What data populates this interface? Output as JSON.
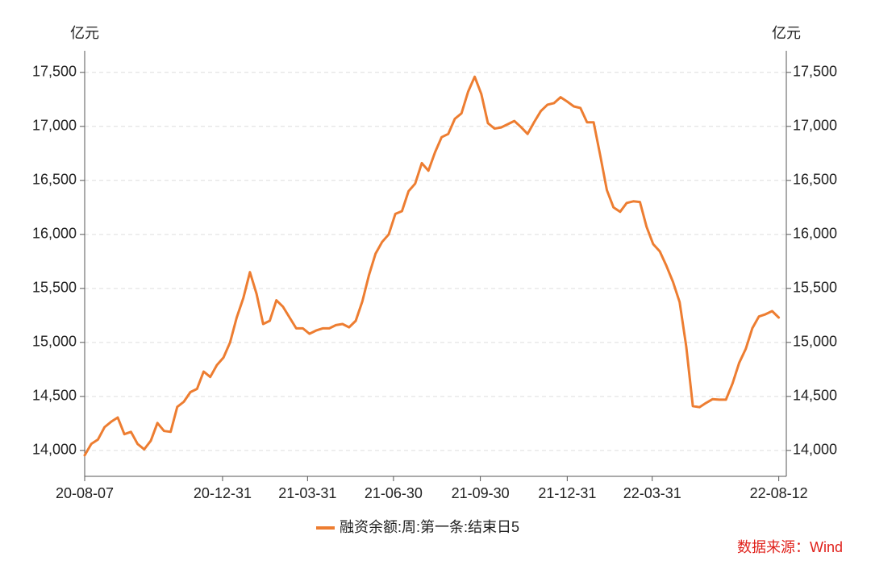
{
  "chart_data": {
    "type": "line",
    "y_label": "亿元",
    "y2_label": "亿元",
    "source": "数据来源：Wind",
    "x": [
      "20-08-07",
      "20-08-14",
      "20-08-21",
      "20-08-28",
      "20-09-04",
      "20-09-11",
      "20-09-18",
      "20-09-25",
      "20-10-02",
      "20-10-09",
      "20-10-16",
      "20-10-23",
      "20-10-30",
      "20-11-06",
      "20-11-13",
      "20-11-20",
      "20-11-27",
      "20-12-04",
      "20-12-11",
      "20-12-18",
      "20-12-25",
      "21-01-01",
      "21-01-08",
      "21-01-15",
      "21-01-22",
      "21-01-29",
      "21-02-05",
      "21-02-12",
      "21-02-19",
      "21-02-26",
      "21-03-05",
      "21-03-12",
      "21-03-19",
      "21-03-26",
      "21-04-02",
      "21-04-09",
      "21-04-16",
      "21-04-23",
      "21-04-30",
      "21-05-07",
      "21-05-14",
      "21-05-21",
      "21-05-28",
      "21-06-04",
      "21-06-11",
      "21-06-18",
      "21-06-25",
      "21-07-02",
      "21-07-09",
      "21-07-16",
      "21-07-23",
      "21-07-30",
      "21-08-06",
      "21-08-13",
      "21-08-20",
      "21-08-27",
      "21-09-03",
      "21-09-10",
      "21-09-17",
      "21-09-24",
      "21-10-01",
      "21-10-08",
      "21-10-15",
      "21-10-22",
      "21-10-29",
      "21-11-05",
      "21-11-12",
      "21-11-19",
      "21-11-26",
      "21-12-03",
      "21-12-10",
      "21-12-17",
      "21-12-24",
      "21-12-31",
      "22-01-07",
      "22-01-14",
      "22-01-21",
      "22-01-28",
      "22-02-04",
      "22-02-11",
      "22-02-18",
      "22-02-25",
      "22-03-04",
      "22-03-11",
      "22-03-18",
      "22-03-25",
      "22-04-01",
      "22-04-08",
      "22-04-15",
      "22-04-22",
      "22-04-29",
      "22-05-06",
      "22-05-13",
      "22-05-20",
      "22-05-27",
      "22-06-03",
      "22-06-10",
      "22-06-17",
      "22-06-24",
      "22-07-01",
      "22-07-08",
      "22-07-15",
      "22-07-22",
      "22-07-29",
      "22-08-05",
      "22-08-12"
    ],
    "series": [
      {
        "name": "融资余额:周:第一条:结束日5",
        "color": "#ed7d31",
        "values": [
          13955,
          14060,
          14100,
          14215,
          14265,
          14305,
          14150,
          14172,
          14060,
          14010,
          14090,
          14254,
          14180,
          14172,
          14403,
          14450,
          14540,
          14570,
          14730,
          14680,
          14790,
          14860,
          15000,
          15230,
          15410,
          15650,
          15450,
          15170,
          15200,
          15390,
          15330,
          15230,
          15130,
          15130,
          15080,
          15110,
          15130,
          15130,
          15160,
          15170,
          15140,
          15200,
          15380,
          15620,
          15820,
          15930,
          16000,
          16190,
          16215,
          16400,
          16470,
          16660,
          16590,
          16760,
          16900,
          16930,
          17070,
          17120,
          17320,
          17460,
          17300,
          17030,
          16980,
          16990,
          17020,
          17050,
          16993,
          16930,
          17040,
          17142,
          17201,
          17216,
          17270,
          17230,
          17185,
          17170,
          17037,
          17037,
          16730,
          16410,
          16250,
          16209,
          16291,
          16306,
          16300,
          16070,
          15910,
          15843,
          15709,
          15560,
          15373,
          14963,
          14410,
          14400,
          14440,
          14475,
          14470,
          14470,
          14620,
          14810,
          14940,
          15130,
          15240,
          15261,
          15290,
          15230
        ]
      }
    ],
    "xlim": [
      "20-08-07",
      "22-08-20"
    ],
    "xticks": [
      "20-08-07",
      "20-12-31",
      "21-03-31",
      "21-06-30",
      "21-09-30",
      "21-12-31",
      "22-03-31",
      "22-08-12"
    ],
    "ylim": [
      13760,
      17700
    ],
    "yticks": [
      {
        "value": 14000,
        "label": "14,000"
      },
      {
        "value": 14500,
        "label": "14,500"
      },
      {
        "value": 15000,
        "label": "15,000"
      },
      {
        "value": 15500,
        "label": "15,500"
      },
      {
        "value": 16000,
        "label": "16,000"
      },
      {
        "value": 16500,
        "label": "16,500"
      },
      {
        "value": 17000,
        "label": "17,000"
      },
      {
        "value": 17500,
        "label": "17,500"
      }
    ],
    "y2lim": [
      13760,
      17700
    ],
    "y2ticks": [
      {
        "value": 14000,
        "label": "14,000"
      },
      {
        "value": 14500,
        "label": "14,500"
      },
      {
        "value": 15000,
        "label": "15,000"
      },
      {
        "value": 15500,
        "label": "15,500"
      },
      {
        "value": 16000,
        "label": "16,000"
      },
      {
        "value": 16500,
        "label": "16,500"
      },
      {
        "value": 17000,
        "label": "17,000"
      },
      {
        "value": 17500,
        "label": "17,500"
      }
    ],
    "grid": true,
    "legend": "bottom"
  }
}
